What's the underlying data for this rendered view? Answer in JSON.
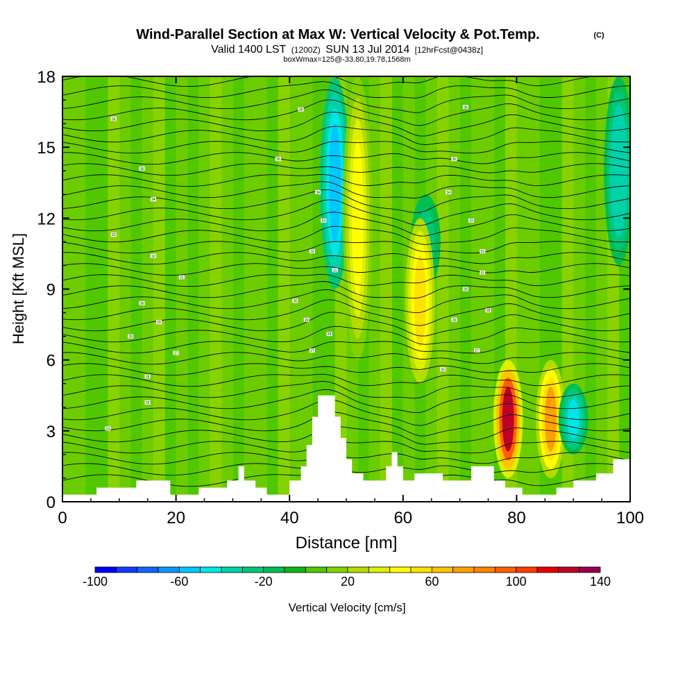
{
  "header": {
    "title": "Wind-Parallel Section at Max W: Vertical Velocity & Pot.Temp.",
    "title_mark": "(C)",
    "subtitle_main": "Valid 1400 LST",
    "subtitle_z": "(1200Z)",
    "subtitle_date": "SUN 13 Jul 2014",
    "subtitle_fcst": "[12hrFcst@0438z]",
    "box_info": "boxWmax=125@-33.80,19.78,1568m"
  },
  "chart_data": {
    "type": "heatmap",
    "title": "Wind-Parallel Section at Max W: Vertical Velocity & Pot.Temp.",
    "xlabel": "Distance [nm]",
    "ylabel": "Height [Kft MSL]",
    "xlim": [
      0,
      100
    ],
    "ylim": [
      0,
      18
    ],
    "xticks": [
      0,
      20,
      40,
      60,
      80,
      100
    ],
    "yticks": [
      0,
      3,
      6,
      9,
      12,
      15,
      18
    ],
    "colorbar": {
      "label": "Vertical Velocity [cm/s]",
      "range": [
        -100,
        140
      ],
      "step": 10,
      "tick_labels": [
        -100,
        -60,
        -20,
        20,
        60,
        100,
        140
      ],
      "colors": [
        "#0000ff",
        "#0f3cff",
        "#0f64ff",
        "#0a96ff",
        "#00c8ff",
        "#00e6e6",
        "#00d2aa",
        "#00c878",
        "#00be50",
        "#14b414",
        "#50c800",
        "#82d200",
        "#b4dc00",
        "#dcf000",
        "#ffff00",
        "#ffe100",
        "#ffc300",
        "#ffa000",
        "#ff8200",
        "#ff5f00",
        "#ff3c00",
        "#e60000",
        "#be0028",
        "#960050"
      ]
    },
    "features": [
      {
        "kind": "downdraft",
        "x": 48,
        "z_range": [
          9,
          18
        ],
        "w": -60
      },
      {
        "kind": "updraft",
        "x": 52,
        "z_range": [
          6,
          18
        ],
        "w": 40
      },
      {
        "kind": "downdraft",
        "x": 64,
        "z_range": [
          9,
          13
        ],
        "w": -30
      },
      {
        "kind": "updraft",
        "x": 63,
        "z_range": [
          5,
          12
        ],
        "w": 55
      },
      {
        "kind": "updraft",
        "x": 78.5,
        "z_range": [
          1,
          6
        ],
        "w": 125
      },
      {
        "kind": "updraft",
        "x": 86,
        "z_range": [
          1,
          6
        ],
        "w": 75
      },
      {
        "kind": "downdraft",
        "x": 90,
        "z_range": [
          2,
          5
        ],
        "w": -50
      },
      {
        "kind": "downdraft",
        "x": 98,
        "z_range": [
          10,
          18
        ],
        "w": -40
      }
    ],
    "terrain_kft": [
      [
        0,
        0.3
      ],
      [
        5,
        0.3
      ],
      [
        6,
        0.6
      ],
      [
        12,
        0.6
      ],
      [
        13,
        0.9
      ],
      [
        18,
        0.9
      ],
      [
        19,
        0.3
      ],
      [
        23,
        0.3
      ],
      [
        24,
        0.6
      ],
      [
        28,
        0.6
      ],
      [
        29,
        0.9
      ],
      [
        31,
        1.5
      ],
      [
        32,
        0.9
      ],
      [
        34,
        0.6
      ],
      [
        36,
        0.3
      ],
      [
        39,
        0.3
      ],
      [
        40,
        0.9
      ],
      [
        42,
        1.5
      ],
      [
        43,
        2.4
      ],
      [
        44,
        3.6
      ],
      [
        45,
        4.5
      ],
      [
        47,
        4.5
      ],
      [
        48,
        3.6
      ],
      [
        49,
        2.7
      ],
      [
        50,
        1.8
      ],
      [
        51,
        1.2
      ],
      [
        52,
        1.2
      ],
      [
        53,
        0.9
      ],
      [
        56,
        0.9
      ],
      [
        57,
        1.5
      ],
      [
        58,
        2.1
      ],
      [
        59,
        1.5
      ],
      [
        60,
        0.9
      ],
      [
        61,
        0.9
      ],
      [
        62,
        1.2
      ],
      [
        66,
        1.2
      ],
      [
        67,
        0.9
      ],
      [
        71,
        0.9
      ],
      [
        72,
        1.5
      ],
      [
        75,
        1.5
      ],
      [
        76,
        0.9
      ],
      [
        78,
        0.6
      ],
      [
        80,
        0.6
      ],
      [
        81,
        0.3
      ],
      [
        86,
        0.3
      ],
      [
        87,
        0.6
      ],
      [
        89,
        0.6
      ],
      [
        90,
        0.9
      ],
      [
        93,
        0.9
      ],
      [
        94,
        1.2
      ],
      [
        96,
        1.2
      ],
      [
        97,
        1.8
      ],
      [
        100,
        1.8
      ]
    ],
    "theta_labels": [
      {
        "text": "36",
        "x": 9,
        "z": 16.2
      },
      {
        "text": "36",
        "x": 42,
        "z": 16.6
      },
      {
        "text": "36",
        "x": 71,
        "z": 16.7
      },
      {
        "text": "35",
        "x": 14,
        "z": 14.1
      },
      {
        "text": "35",
        "x": 38,
        "z": 14.5
      },
      {
        "text": "35",
        "x": 69,
        "z": 14.5
      },
      {
        "text": "34",
        "x": 16,
        "z": 12.8
      },
      {
        "text": "34",
        "x": 45,
        "z": 13.1
      },
      {
        "text": "34",
        "x": 68,
        "z": 13.1
      },
      {
        "text": "33",
        "x": 9,
        "z": 11.3
      },
      {
        "text": "33",
        "x": 46,
        "z": 11.9
      },
      {
        "text": "33",
        "x": 72,
        "z": 11.9
      },
      {
        "text": "32",
        "x": 16,
        "z": 10.4
      },
      {
        "text": "32",
        "x": 44,
        "z": 10.6
      },
      {
        "text": "32",
        "x": 74,
        "z": 10.6
      },
      {
        "text": "31",
        "x": 21,
        "z": 9.5
      },
      {
        "text": "31",
        "x": 48,
        "z": 9.8
      },
      {
        "text": "31",
        "x": 74,
        "z": 9.7
      },
      {
        "text": "30",
        "x": 14,
        "z": 8.4
      },
      {
        "text": "30",
        "x": 41,
        "z": 8.5
      },
      {
        "text": "30",
        "x": 71,
        "z": 9.0
      },
      {
        "text": "29",
        "x": 17,
        "z": 7.6
      },
      {
        "text": "29",
        "x": 43,
        "z": 7.7
      },
      {
        "text": "29",
        "x": 69,
        "z": 7.7
      },
      {
        "text": "28",
        "x": 12,
        "z": 7.0
      },
      {
        "text": "28",
        "x": 47,
        "z": 7.1
      },
      {
        "text": "28",
        "x": 75,
        "z": 8.1
      },
      {
        "text": "27",
        "x": 20,
        "z": 6.3
      },
      {
        "text": "27",
        "x": 44,
        "z": 6.4
      },
      {
        "text": "27",
        "x": 73,
        "z": 6.4
      },
      {
        "text": "26",
        "x": 15,
        "z": 5.3
      },
      {
        "text": "26",
        "x": 67,
        "z": 5.6
      },
      {
        "text": "25",
        "x": 15,
        "z": 4.2
      },
      {
        "text": "24",
        "x": 8,
        "z": 3.1
      }
    ]
  },
  "style": {
    "bg_green": "#50c800",
    "grid_line": "#000000"
  }
}
